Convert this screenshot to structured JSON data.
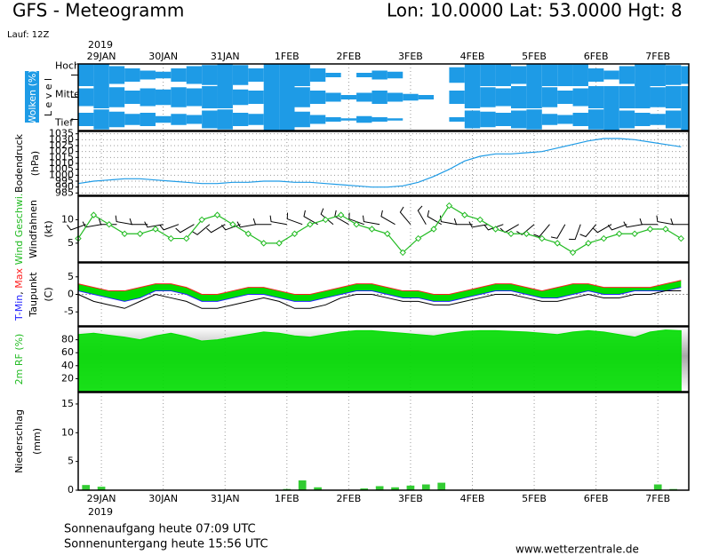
{
  "header": {
    "title": "GFS - Meteogramm",
    "location": "Lon: 10.0000 Lat: 53.0000 Hgt: 8",
    "run": "Lauf: 12Z"
  },
  "time_axis": {
    "xlim": [
      0,
      237
    ],
    "x": [
      0,
      6,
      12,
      18,
      24,
      30,
      36,
      42,
      48,
      54,
      60,
      66,
      72,
      78,
      84,
      90,
      96,
      102,
      108,
      114,
      120,
      126,
      132,
      138,
      144,
      150,
      156,
      162,
      168,
      174,
      180,
      186,
      192,
      198,
      204,
      210,
      216,
      222,
      228,
      234
    ],
    "xticks": [
      {
        "value": 9,
        "label": "29JAN"
      },
      {
        "value": 33,
        "label": "30JAN"
      },
      {
        "value": 57,
        "label": "31JAN"
      },
      {
        "value": 81,
        "label": "1FEB"
      },
      {
        "value": 105,
        "label": "2FEB"
      },
      {
        "value": 129,
        "label": "3FEB"
      },
      {
        "value": 153,
        "label": "4FEB"
      },
      {
        "value": 177,
        "label": "5FEB"
      },
      {
        "value": 201,
        "label": "6FEB"
      },
      {
        "value": 225,
        "label": "7FEB"
      }
    ],
    "year": "2019"
  },
  "chart_data": [
    {
      "type": "cloud-levels",
      "ylabel": [
        "Wolken (%)",
        "L e v e l"
      ],
      "label_bg": "#1e9be6",
      "ylim": [
        0,
        100
      ],
      "color": "#1e9be6",
      "series": [
        {
          "name": "Hoch",
          "values": [
            100,
            100,
            80,
            60,
            40,
            30,
            60,
            80,
            90,
            100,
            90,
            60,
            100,
            100,
            100,
            60,
            20,
            0,
            20,
            40,
            30,
            0,
            0,
            0,
            70,
            100,
            100,
            100,
            80,
            100,
            100,
            100,
            100,
            60,
            40,
            80,
            100,
            100,
            90,
            80
          ]
        },
        {
          "name": "Mittel",
          "values": [
            80,
            100,
            90,
            60,
            80,
            70,
            90,
            80,
            100,
            100,
            70,
            60,
            100,
            100,
            90,
            60,
            40,
            20,
            40,
            60,
            40,
            30,
            20,
            0,
            60,
            100,
            90,
            80,
            100,
            100,
            90,
            60,
            80,
            100,
            100,
            100,
            100,
            90,
            100,
            100
          ]
        },
        {
          "name": "Tief",
          "values": [
            60,
            90,
            70,
            50,
            60,
            30,
            50,
            40,
            80,
            90,
            60,
            50,
            100,
            100,
            70,
            40,
            20,
            10,
            30,
            20,
            10,
            0,
            0,
            0,
            20,
            80,
            70,
            60,
            80,
            90,
            50,
            40,
            60,
            90,
            100,
            80,
            60,
            50,
            80,
            100
          ]
        }
      ]
    },
    {
      "type": "line",
      "ylabel": [
        "Bodendruck",
        "(hPa)"
      ],
      "ylim": [
        983,
        1037
      ],
      "yticks": [
        985,
        990,
        995,
        1000,
        1005,
        1010,
        1015,
        1020,
        1025,
        1030,
        1035
      ],
      "grid": true,
      "color": "#1e9be6",
      "values": [
        993,
        995,
        996,
        997,
        997,
        996,
        995,
        994,
        993,
        993,
        994,
        994,
        995,
        995,
        994,
        994,
        993,
        992,
        991,
        990,
        990,
        991,
        994,
        999,
        1005,
        1012,
        1016,
        1018,
        1018,
        1019,
        1020,
        1023,
        1026,
        1029,
        1031,
        1031,
        1030,
        1028,
        1026,
        1024
      ]
    },
    {
      "type": "wind",
      "ylabel": [
        "(kt)"
      ],
      "ylim": [
        1,
        15
      ],
      "yticks": [
        5,
        10
      ],
      "series": [
        {
          "name": "Wind Geschwi.",
          "color": "#22bb22",
          "values": [
            6,
            11,
            9,
            7,
            7,
            8,
            6,
            6,
            10,
            11,
            9,
            7,
            5,
            5,
            7,
            9,
            10,
            11,
            9,
            8,
            7,
            3,
            6,
            8,
            13,
            11,
            10,
            8,
            7,
            7,
            6,
            5,
            3,
            5,
            6,
            7,
            7,
            8,
            8,
            6
          ]
        },
        {
          "name": "Windfahnen",
          "color": "#000000",
          "values": [
            250,
            260,
            270,
            280,
            270,
            260,
            250,
            240,
            230,
            240,
            250,
            260,
            270,
            280,
            290,
            300,
            310,
            300,
            290,
            280,
            300,
            320,
            330,
            300,
            280,
            270,
            260,
            250,
            240,
            230,
            220,
            210,
            200,
            220,
            240,
            250,
            260,
            270,
            280,
            270
          ]
        }
      ]
    },
    {
      "type": "temperature",
      "ylabel": [
        "(C)"
      ],
      "separator": ", ",
      "ylim": [
        -9,
        9
      ],
      "yticks": [
        -5,
        0,
        5
      ],
      "fill": "#00dd00",
      "series": [
        {
          "name": "T-Min",
          "color": "#2222ff",
          "values": [
            1,
            0,
            -1,
            -2,
            -1,
            1,
            1,
            0,
            -2,
            -2,
            -1,
            0,
            0,
            -1,
            -2,
            -2,
            -1,
            0,
            1,
            1,
            0,
            -1,
            -1,
            -2,
            -2,
            -1,
            0,
            1,
            1,
            0,
            -1,
            -1,
            0,
            1,
            0,
            0,
            1,
            1,
            1,
            2
          ]
        },
        {
          "name": "Max",
          "color": "#ff2020",
          "values": [
            3,
            2,
            1,
            1,
            2,
            3,
            3,
            2,
            0,
            0,
            1,
            2,
            2,
            1,
            0,
            0,
            1,
            2,
            3,
            3,
            2,
            1,
            1,
            0,
            0,
            1,
            2,
            3,
            3,
            2,
            1,
            2,
            3,
            3,
            2,
            2,
            2,
            2,
            3,
            4
          ]
        },
        {
          "name": "Taupunkt",
          "color": "#000000",
          "values": [
            0,
            -2,
            -3,
            -4,
            -2,
            0,
            -1,
            -2,
            -4,
            -4,
            -3,
            -2,
            -1,
            -2,
            -4,
            -4,
            -3,
            -1,
            0,
            0,
            -1,
            -2,
            -2,
            -3,
            -3,
            -2,
            -1,
            0,
            0,
            -1,
            -2,
            -2,
            -1,
            0,
            -1,
            -1,
            0,
            0,
            1,
            1
          ]
        }
      ]
    },
    {
      "type": "area",
      "ylabel": [
        "2m RF (%)"
      ],
      "label_color": "#22bb22",
      "ylim": [
        0,
        100
      ],
      "yticks": [
        20,
        40,
        60,
        80
      ],
      "color": "#00dd00",
      "values": [
        88,
        90,
        87,
        84,
        80,
        86,
        90,
        85,
        78,
        80,
        84,
        88,
        92,
        90,
        86,
        84,
        88,
        92,
        94,
        94,
        92,
        90,
        88,
        86,
        90,
        93,
        94,
        94,
        93,
        92,
        90,
        88,
        92,
        94,
        92,
        88,
        84,
        92,
        95,
        94
      ]
    },
    {
      "type": "bar",
      "ylabel": [
        "Niederschlag",
        "(mm)"
      ],
      "ylim": [
        0,
        17
      ],
      "yticks": [
        0,
        5,
        10,
        15
      ],
      "color": "#33cc33",
      "values": [
        0.9,
        0.6,
        0,
        0,
        0,
        0,
        0,
        0,
        0,
        0,
        0,
        0,
        0,
        0.2,
        1.7,
        0.5,
        0,
        0,
        0.3,
        0.7,
        0.5,
        0.8,
        1.0,
        1.3,
        0,
        0,
        0,
        0,
        0,
        0,
        0,
        0,
        0,
        0,
        0,
        0,
        0,
        1,
        0.2,
        0
      ]
    }
  ],
  "footer": {
    "sunrise": "Sonnenaufgang heute 07:09 UTC",
    "sunset": "Sonnenuntergang heute 15:56 UTC",
    "url": "www.wetterzentrale.de"
  }
}
